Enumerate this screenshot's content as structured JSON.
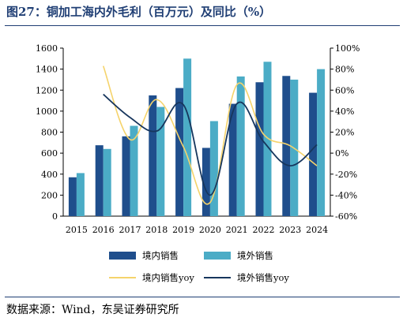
{
  "title": "图27：铜加工海内外毛利（百万元）及同比（%）",
  "source": "数据来源：Wind，东吴证券研究所",
  "colors": {
    "bar1": "#1f4e8c",
    "bar2": "#4bacc6",
    "line1": "#f5d36b",
    "line2": "#17365d",
    "title": "#1f3e74"
  },
  "chart_data": {
    "type": "bar",
    "categories": [
      "2015",
      "2016",
      "2017",
      "2018",
      "2019",
      "2020",
      "2021",
      "2022",
      "2023",
      "2024"
    ],
    "series": [
      {
        "name": "境内销售",
        "type": "bar",
        "axis": "left",
        "values": [
          370,
          675,
          760,
          1150,
          1220,
          650,
          1070,
          1275,
          1335,
          1175
        ]
      },
      {
        "name": "境外销售",
        "type": "bar",
        "axis": "left",
        "values": [
          410,
          640,
          860,
          1040,
          1500,
          905,
          1330,
          1470,
          1300,
          1400
        ]
      },
      {
        "name": "境内销售yoy",
        "type": "line",
        "axis": "right",
        "values": [
          null,
          83,
          13,
          51,
          6,
          -47,
          65,
          18,
          7,
          -12
        ]
      },
      {
        "name": "境外销售yoy",
        "type": "line",
        "axis": "right",
        "values": [
          null,
          56,
          34,
          21,
          46,
          -40,
          47,
          11,
          -12,
          8
        ]
      }
    ],
    "ylim_left": [
      0,
      1600
    ],
    "yticks_left": [
      0,
      200,
      400,
      600,
      800,
      1000,
      1200,
      1400,
      1600
    ],
    "ylim_right": [
      -60,
      100
    ],
    "yticks_right": [
      "-60%",
      "-40%",
      "-20%",
      "0%",
      "20%",
      "40%",
      "60%",
      "80%",
      "100%"
    ],
    "grid": false,
    "legend_position": "bottom"
  }
}
